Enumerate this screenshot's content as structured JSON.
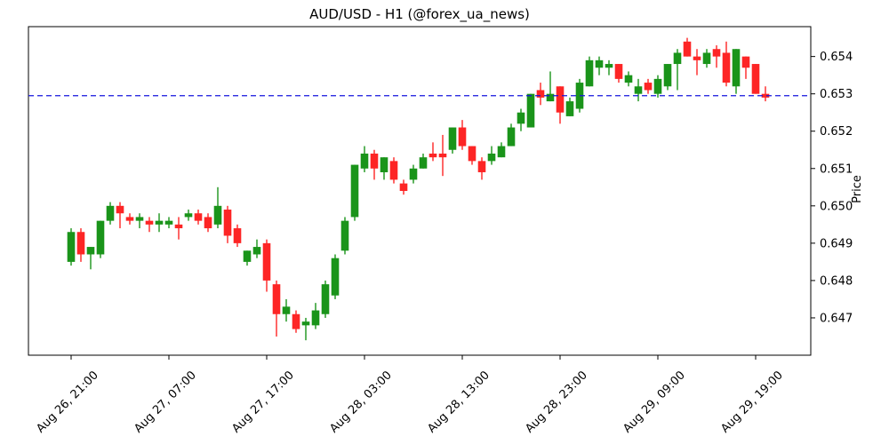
{
  "figure": {
    "background": "#ffffff",
    "border_color": "#000000"
  },
  "chart_data": {
    "type": "candlestick",
    "title": "AUD/USD - H1 (@forex_ua_news)",
    "ylabel": "Price",
    "ylabel_side": "right",
    "xlabel": "",
    "grid": false,
    "legend": false,
    "ylim": [
      0.646,
      0.6548
    ],
    "yticks": [
      0.647,
      0.648,
      0.649,
      0.65,
      0.651,
      0.652,
      0.653,
      0.654
    ],
    "ytick_format": "0.000",
    "xticks": [
      {
        "i": 0,
        "label": "Aug 26, 21:00"
      },
      {
        "i": 10,
        "label": "Aug 27, 07:00"
      },
      {
        "i": 20,
        "label": "Aug 27, 17:00"
      },
      {
        "i": 30,
        "label": "Aug 28, 03:00"
      },
      {
        "i": 40,
        "label": "Aug 28, 13:00"
      },
      {
        "i": 50,
        "label": "Aug 28, 23:00"
      },
      {
        "i": 60,
        "label": "Aug 29, 09:00"
      },
      {
        "i": 70,
        "label": "Aug 29, 19:00"
      }
    ],
    "up_color": "#1a941a",
    "down_color": "#fd2525",
    "hline": {
      "value": 0.65295,
      "color": "#1515dd",
      "style": "dashed"
    },
    "columns": [
      "time",
      "open",
      "high",
      "low",
      "close"
    ],
    "candles": [
      [
        "Aug 26, 21:00",
        0.6485,
        0.6494,
        0.6484,
        0.6493
      ],
      [
        "Aug 26, 22:00",
        0.6493,
        0.6494,
        0.6485,
        0.6487
      ],
      [
        "Aug 26, 23:00",
        0.6487,
        0.6489,
        0.6483,
        0.6489
      ],
      [
        "Aug 27, 00:00",
        0.6487,
        0.6496,
        0.6486,
        0.6496
      ],
      [
        "Aug 27, 01:00",
        0.6496,
        0.6501,
        0.6495,
        0.65
      ],
      [
        "Aug 27, 02:00",
        0.65,
        0.6501,
        0.6494,
        0.6498
      ],
      [
        "Aug 27, 03:00",
        0.6497,
        0.6498,
        0.6495,
        0.6496
      ],
      [
        "Aug 27, 04:00",
        0.6496,
        0.6498,
        0.6494,
        0.6497
      ],
      [
        "Aug 27, 05:00",
        0.6496,
        0.6497,
        0.6493,
        0.6495
      ],
      [
        "Aug 27, 06:00",
        0.6495,
        0.6498,
        0.6493,
        0.6496
      ],
      [
        "Aug 27, 07:00",
        0.6495,
        0.6497,
        0.6494,
        0.6496
      ],
      [
        "Aug 27, 08:00",
        0.6495,
        0.6497,
        0.6491,
        0.6494
      ],
      [
        "Aug 27, 09:00",
        0.6497,
        0.6499,
        0.6496,
        0.6498
      ],
      [
        "Aug 27, 10:00",
        0.6498,
        0.6499,
        0.6495,
        0.6496
      ],
      [
        "Aug 27, 11:00",
        0.6497,
        0.6498,
        0.6493,
        0.6494
      ],
      [
        "Aug 27, 12:00",
        0.6495,
        0.6505,
        0.6494,
        0.65
      ],
      [
        "Aug 27, 13:00",
        0.6499,
        0.65,
        0.649,
        0.6492
      ],
      [
        "Aug 27, 14:00",
        0.6494,
        0.6495,
        0.6489,
        0.649
      ],
      [
        "Aug 27, 15:00",
        0.6485,
        0.6488,
        0.6484,
        0.6488
      ],
      [
        "Aug 27, 16:00",
        0.6487,
        0.6491,
        0.6486,
        0.6489
      ],
      [
        "Aug 27, 17:00",
        0.649,
        0.6491,
        0.6477,
        0.648
      ],
      [
        "Aug 27, 18:00",
        0.6479,
        0.648,
        0.6465,
        0.6471
      ],
      [
        "Aug 27, 19:00",
        0.6471,
        0.6475,
        0.6469,
        0.6473
      ],
      [
        "Aug 27, 20:00",
        0.6471,
        0.6472,
        0.6466,
        0.6467
      ],
      [
        "Aug 27, 21:00",
        0.6468,
        0.647,
        0.6464,
        0.6469
      ],
      [
        "Aug 27, 22:00",
        0.6468,
        0.6474,
        0.6467,
        0.6472
      ],
      [
        "Aug 27, 23:00",
        0.6471,
        0.648,
        0.647,
        0.6479
      ],
      [
        "Aug 28, 00:00",
        0.6476,
        0.6487,
        0.6475,
        0.6486
      ],
      [
        "Aug 28, 01:00",
        0.6488,
        0.6497,
        0.6487,
        0.6496
      ],
      [
        "Aug 28, 02:00",
        0.6497,
        0.6511,
        0.6496,
        0.6511
      ],
      [
        "Aug 28, 03:00",
        0.651,
        0.6516,
        0.6509,
        0.6514
      ],
      [
        "Aug 28, 04:00",
        0.6514,
        0.6515,
        0.6507,
        0.651
      ],
      [
        "Aug 28, 05:00",
        0.6509,
        0.6513,
        0.6507,
        0.6513
      ],
      [
        "Aug 28, 06:00",
        0.6512,
        0.6513,
        0.6506,
        0.6507
      ],
      [
        "Aug 28, 07:00",
        0.6506,
        0.6507,
        0.6503,
        0.6504
      ],
      [
        "Aug 28, 08:00",
        0.6507,
        0.6511,
        0.6506,
        0.651
      ],
      [
        "Aug 28, 09:00",
        0.651,
        0.6514,
        0.651,
        0.6513
      ],
      [
        "Aug 28, 10:00",
        0.6514,
        0.6517,
        0.6512,
        0.6513
      ],
      [
        "Aug 28, 11:00",
        0.6514,
        0.6519,
        0.6508,
        0.6513
      ],
      [
        "Aug 28, 12:00",
        0.6515,
        0.6521,
        0.6514,
        0.6521
      ],
      [
        "Aug 28, 13:00",
        0.6521,
        0.6523,
        0.6515,
        0.6516
      ],
      [
        "Aug 28, 14:00",
        0.6516,
        0.6516,
        0.6511,
        0.6512
      ],
      [
        "Aug 28, 15:00",
        0.6512,
        0.6513,
        0.6507,
        0.6509
      ],
      [
        "Aug 28, 16:00",
        0.6512,
        0.6516,
        0.6511,
        0.6514
      ],
      [
        "Aug 28, 17:00",
        0.6513,
        0.6517,
        0.6513,
        0.6516
      ],
      [
        "Aug 28, 18:00",
        0.6516,
        0.6522,
        0.6516,
        0.6521
      ],
      [
        "Aug 28, 19:00",
        0.6522,
        0.6526,
        0.652,
        0.6525
      ],
      [
        "Aug 28, 20:00",
        0.6521,
        0.653,
        0.6521,
        0.653
      ],
      [
        "Aug 28, 21:00",
        0.6531,
        0.6533,
        0.6527,
        0.6529
      ],
      [
        "Aug 28, 22:00",
        0.6528,
        0.6536,
        0.6528,
        0.653
      ],
      [
        "Aug 28, 23:00",
        0.6532,
        0.6532,
        0.6522,
        0.6525
      ],
      [
        "Aug 29, 00:00",
        0.6524,
        0.6529,
        0.6524,
        0.6528
      ],
      [
        "Aug 29, 01:00",
        0.6526,
        0.6534,
        0.6525,
        0.6533
      ],
      [
        "Aug 29, 02:00",
        0.6532,
        0.654,
        0.6532,
        0.6539
      ],
      [
        "Aug 29, 03:00",
        0.6537,
        0.654,
        0.6535,
        0.6539
      ],
      [
        "Aug 29, 04:00",
        0.6537,
        0.6539,
        0.6535,
        0.6538
      ],
      [
        "Aug 29, 05:00",
        0.6538,
        0.6538,
        0.6533,
        0.6534
      ],
      [
        "Aug 29, 06:00",
        0.6533,
        0.6536,
        0.6532,
        0.6535
      ],
      [
        "Aug 29, 07:00",
        0.653,
        0.6534,
        0.6528,
        0.6532
      ],
      [
        "Aug 29, 08:00",
        0.6533,
        0.6534,
        0.653,
        0.6531
      ],
      [
        "Aug 29, 09:00",
        0.653,
        0.6535,
        0.6529,
        0.6534
      ],
      [
        "Aug 29, 10:00",
        0.6532,
        0.6538,
        0.6531,
        0.6538
      ],
      [
        "Aug 29, 11:00",
        0.6538,
        0.6542,
        0.6531,
        0.6541
      ],
      [
        "Aug 29, 12:00",
        0.6544,
        0.6545,
        0.654,
        0.654
      ],
      [
        "Aug 29, 13:00",
        0.654,
        0.6542,
        0.6535,
        0.6539
      ],
      [
        "Aug 29, 14:00",
        0.6538,
        0.6542,
        0.6537,
        0.6541
      ],
      [
        "Aug 29, 15:00",
        0.6542,
        0.6543,
        0.6537,
        0.654
      ],
      [
        "Aug 29, 16:00",
        0.6541,
        0.6544,
        0.6532,
        0.6533
      ],
      [
        "Aug 29, 17:00",
        0.6532,
        0.6542,
        0.653,
        0.6542
      ],
      [
        "Aug 29, 18:00",
        0.654,
        0.654,
        0.6534,
        0.6537
      ],
      [
        "Aug 29, 19:00",
        0.6538,
        0.6538,
        0.653,
        0.653
      ],
      [
        "Aug 29, 20:00",
        0.653,
        0.6532,
        0.6528,
        0.6529
      ]
    ]
  }
}
